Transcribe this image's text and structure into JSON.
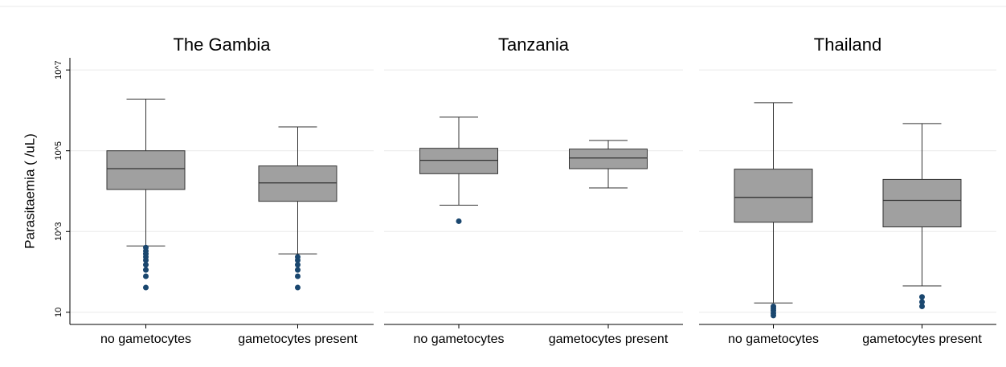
{
  "chart_data": [
    {
      "type": "box",
      "title": "The Gambia",
      "ylabel": "Parasitaemia ( /uL)",
      "categories": [
        "no gametocytes",
        "gametocytes present"
      ],
      "boxes": [
        {
          "min": 440,
          "q1": 11000,
          "median": 36000,
          "q3": 100000,
          "max": 1900000,
          "outliers": [
            400,
            330,
            280,
            235,
            195,
            150,
            112,
            78,
            41
          ]
        },
        {
          "min": 280,
          "q1": 5600,
          "median": 16000,
          "q3": 42000,
          "max": 390000,
          "outliers": [
            235,
            195,
            150,
            112,
            78,
            41
          ]
        }
      ],
      "box_color": "#a0a0a0",
      "outlier_color": "#1a476f",
      "log_y": true,
      "ylim": [
        5,
        20000000
      ],
      "grid": true,
      "yticks": [
        {
          "value": 10,
          "label": "10"
        },
        {
          "value": 1000,
          "label": "10^3"
        },
        {
          "value": 100000,
          "label": "10^5"
        },
        {
          "value": 10000000,
          "label": "10^7"
        }
      ]
    },
    {
      "type": "box",
      "title": "Tanzania",
      "categories": [
        "no gametocytes",
        "gametocytes present"
      ],
      "boxes": [
        {
          "min": 4500,
          "q1": 27000,
          "median": 58000,
          "q3": 115000,
          "max": 680000,
          "outliers": [
            1800
          ]
        },
        {
          "min": 12000,
          "q1": 36000,
          "median": 66000,
          "q3": 110000,
          "max": 180000,
          "outliers": []
        }
      ],
      "box_color": "#a0a0a0",
      "outlier_color": "#1a476f",
      "log_y": true,
      "ylim": [
        5,
        20000000
      ],
      "grid": true
    },
    {
      "type": "box",
      "title": "Thailand",
      "categories": [
        "no gametocytes",
        "gametocytes present"
      ],
      "boxes": [
        {
          "min": 17,
          "q1": 1700,
          "median": 7000,
          "q3": 35000,
          "max": 1550000,
          "outliers": [
            14,
            12.5,
            11,
            9.5,
            8.3
          ]
        },
        {
          "min": 45,
          "q1": 1300,
          "median": 5900,
          "q3": 19500,
          "max": 470000,
          "outliers": [
            24,
            18,
            14
          ]
        }
      ],
      "box_color": "#a0a0a0",
      "outlier_color": "#1a476f",
      "log_y": true,
      "ylim": [
        5,
        20000000
      ],
      "grid": true
    }
  ]
}
